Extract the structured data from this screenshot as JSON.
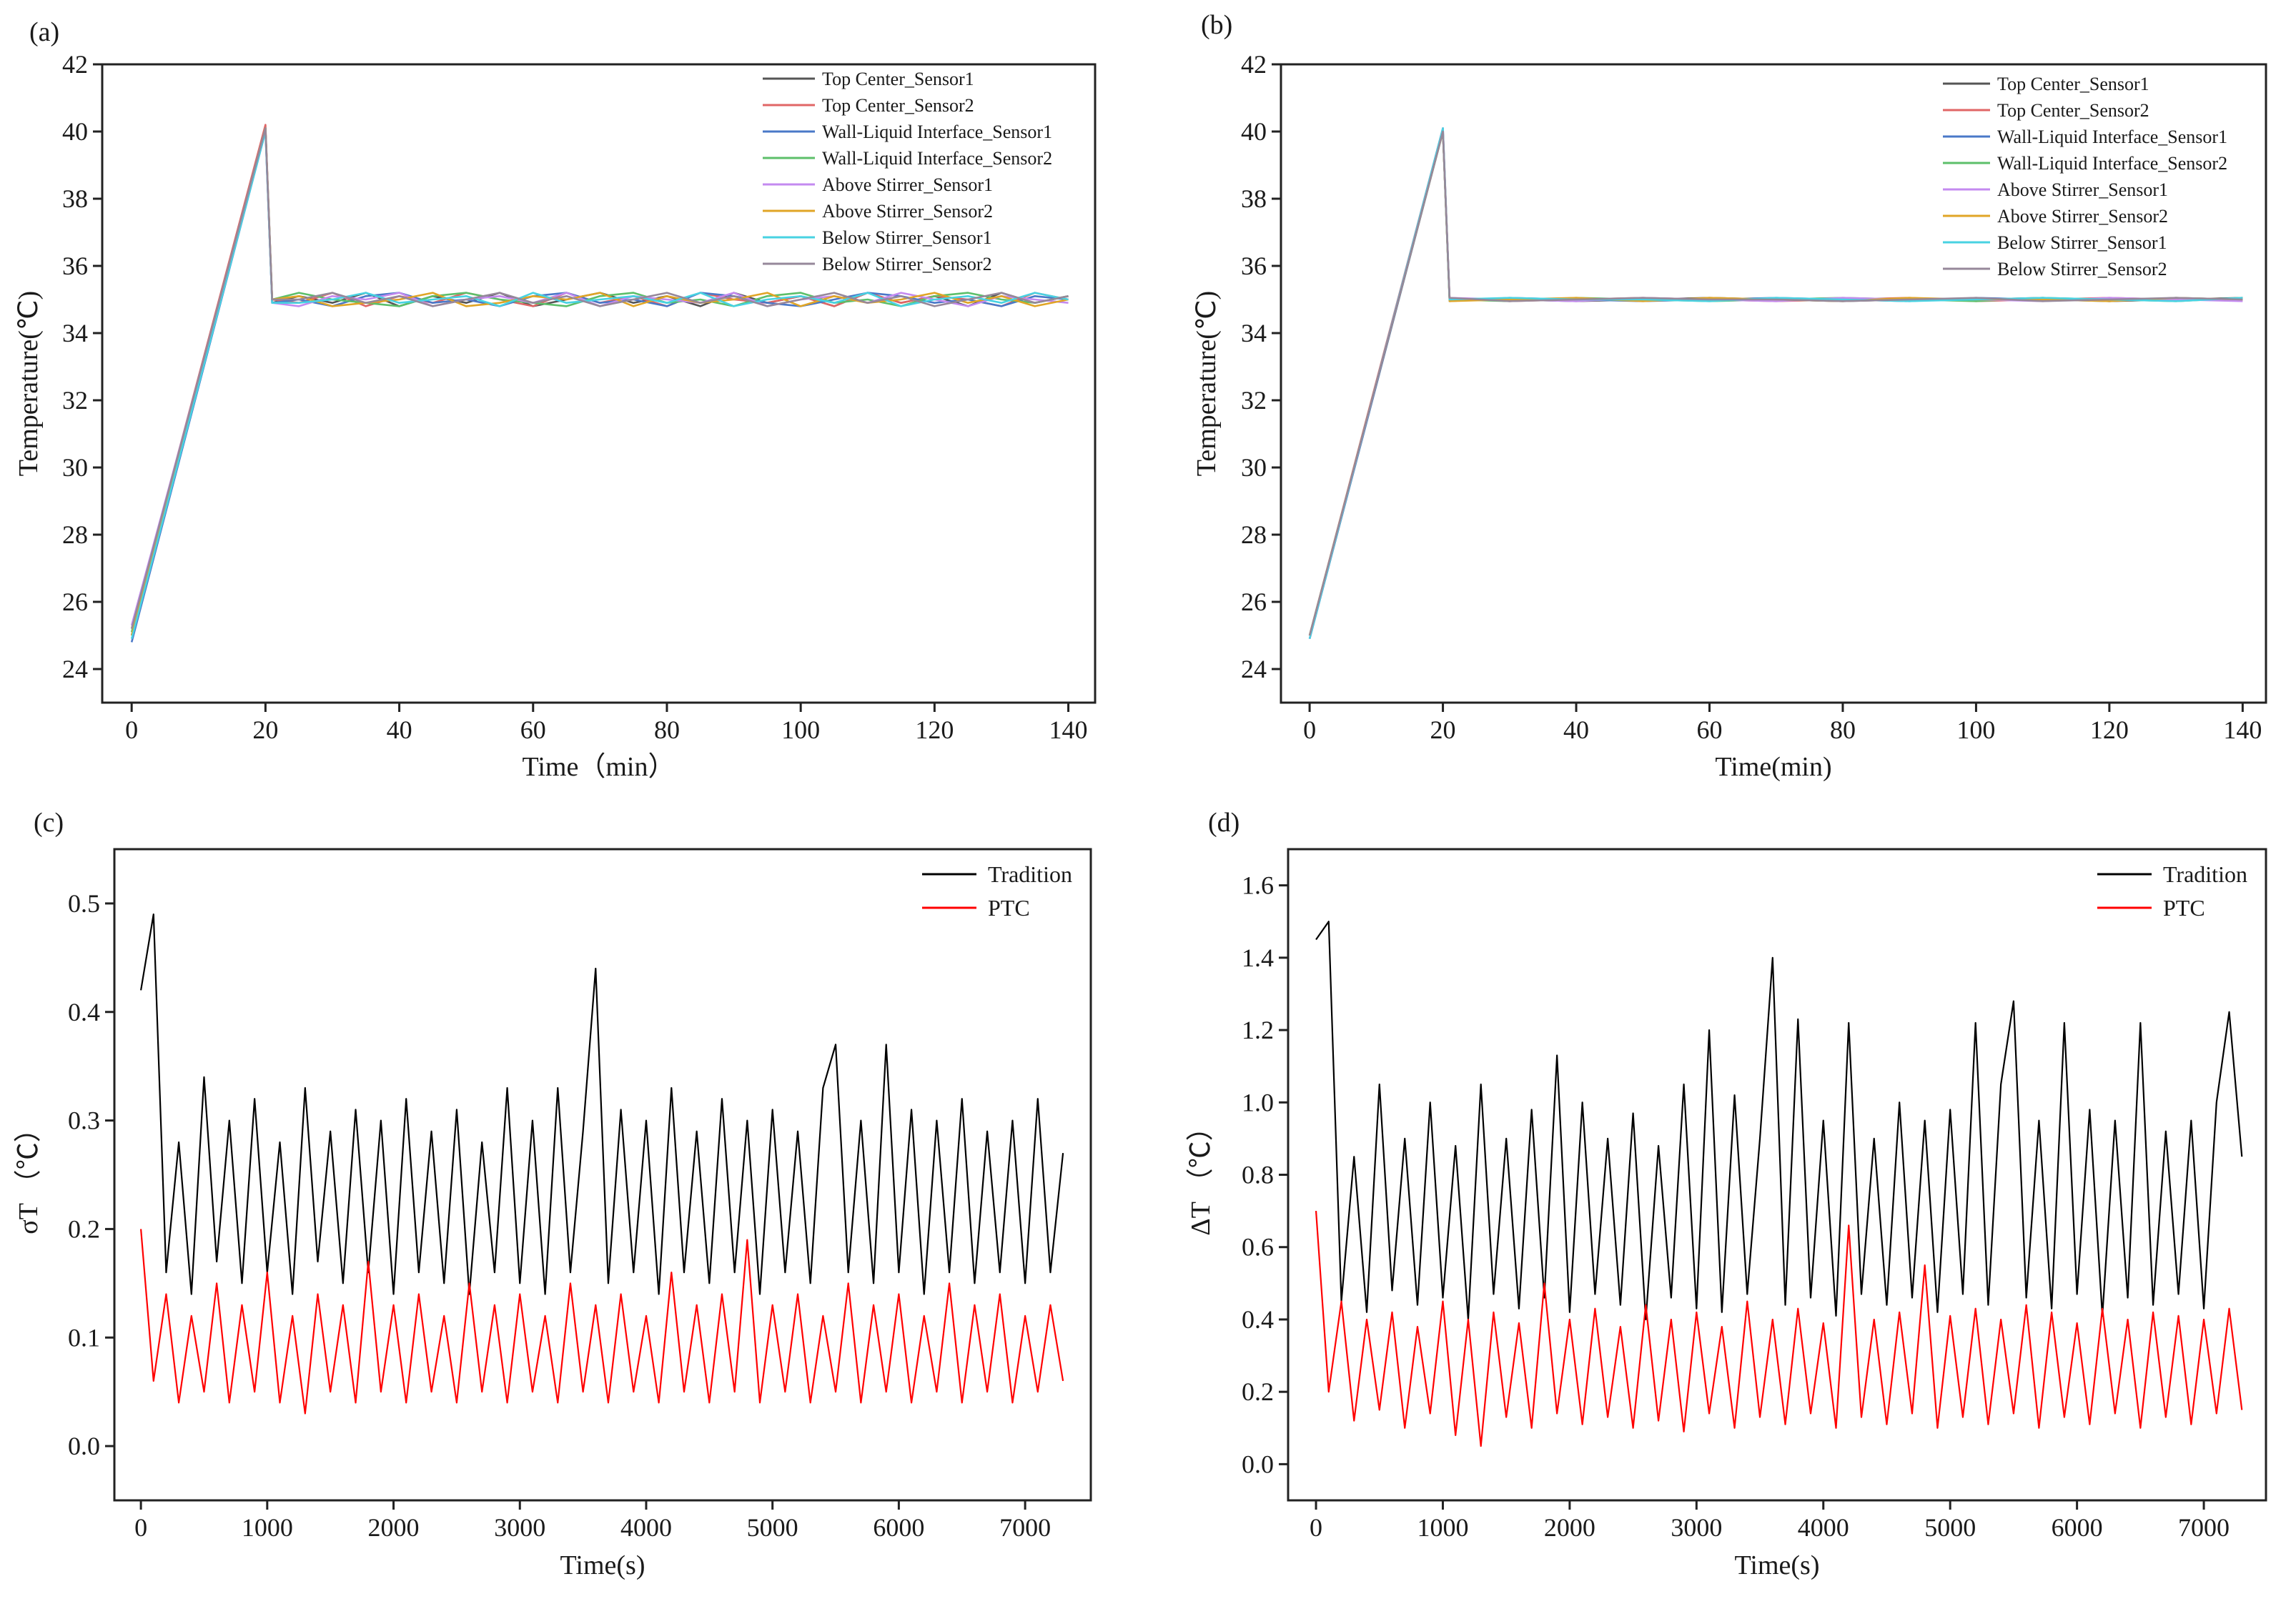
{
  "chart_data": [
    {
      "type": "line",
      "panel_label": "(a)",
      "xlabel": "Time（min）",
      "ylabel": "Temperature(℃)",
      "legend": "upper right",
      "xlim": [
        -4.4,
        144
      ],
      "ylim": [
        23,
        42
      ],
      "xticks": [
        0,
        20,
        40,
        60,
        80,
        100,
        120,
        140
      ],
      "yticks": [
        24,
        26,
        28,
        30,
        32,
        34,
        36,
        38,
        40,
        42
      ],
      "x": [
        0,
        20,
        21,
        25,
        30,
        35,
        40,
        45,
        50,
        55,
        60,
        65,
        70,
        75,
        80,
        85,
        90,
        95,
        100,
        105,
        110,
        115,
        120,
        125,
        130,
        135,
        140
      ],
      "series": [
        {
          "name": "Top Center_Sensor1",
          "color": "#555555",
          "values": [
            25.0,
            40.1,
            34.9,
            35.1,
            34.9,
            35.2,
            34.8,
            35.1,
            34.9,
            35.2,
            34.8,
            35.0,
            35.2,
            34.9,
            35.1,
            34.8,
            35.2,
            34.9,
            35.1,
            34.8,
            35.2,
            34.9,
            35.1,
            34.8,
            35.2,
            34.9,
            35.1
          ]
        },
        {
          "name": "Top Center_Sensor2",
          "color": "#e06666",
          "values": [
            25.2,
            40.2,
            35.0,
            34.9,
            35.2,
            34.8,
            35.1,
            34.9,
            35.2,
            35.0,
            34.8,
            35.2,
            34.9,
            35.1,
            34.8,
            35.2,
            35.0,
            34.9,
            35.1,
            34.8,
            35.2,
            34.9,
            35.1,
            35.0,
            34.8,
            35.2,
            35.0
          ]
        },
        {
          "name": "Wall-Liquid Interface_Sensor1",
          "color": "#4a78c8",
          "values": [
            24.8,
            40.0,
            34.9,
            35.0,
            34.8,
            35.1,
            35.2,
            34.9,
            35.0,
            34.8,
            35.1,
            35.2,
            34.9,
            35.0,
            34.8,
            35.2,
            35.1,
            34.9,
            34.8,
            35.0,
            35.2,
            35.1,
            34.9,
            35.0,
            34.8,
            35.1,
            35.0
          ]
        },
        {
          "name": "Wall-Liquid Interface_Sensor2",
          "color": "#5cbf6a",
          "values": [
            25.1,
            40.1,
            35.0,
            35.2,
            35.0,
            34.9,
            34.8,
            35.1,
            35.2,
            35.0,
            34.9,
            34.8,
            35.1,
            35.2,
            34.9,
            35.0,
            34.8,
            35.1,
            35.2,
            34.9,
            35.0,
            34.8,
            35.1,
            35.2,
            35.0,
            34.9,
            35.1
          ]
        },
        {
          "name": "Above Stirrer_Sensor1",
          "color": "#c48af0",
          "values": [
            25.3,
            40.0,
            34.9,
            34.8,
            35.1,
            35.0,
            35.2,
            34.8,
            35.0,
            35.1,
            34.9,
            35.2,
            34.8,
            35.1,
            35.0,
            34.9,
            35.2,
            34.8,
            35.0,
            35.1,
            34.9,
            35.2,
            35.0,
            34.8,
            35.1,
            35.0,
            34.9
          ]
        },
        {
          "name": "Above Stirrer_Sensor2",
          "color": "#e0a526",
          "values": [
            25.0,
            40.1,
            35.0,
            35.1,
            34.8,
            34.9,
            35.0,
            35.2,
            34.8,
            34.9,
            35.1,
            35.0,
            35.2,
            34.8,
            35.1,
            34.9,
            35.0,
            35.2,
            34.8,
            35.1,
            34.9,
            35.0,
            35.2,
            34.9,
            35.1,
            34.8,
            35.0
          ]
        },
        {
          "name": "Below Stirrer_Sensor1",
          "color": "#48d2e2",
          "values": [
            24.9,
            40.0,
            34.9,
            34.9,
            35.0,
            35.2,
            34.9,
            35.0,
            35.1,
            34.8,
            35.2,
            34.9,
            35.0,
            35.1,
            34.9,
            35.2,
            34.8,
            35.0,
            35.1,
            34.9,
            35.2,
            34.8,
            35.0,
            35.1,
            34.9,
            35.2,
            35.0
          ]
        },
        {
          "name": "Below Stirrer_Sensor2",
          "color": "#96889a",
          "values": [
            25.2,
            40.1,
            35.0,
            35.0,
            35.2,
            34.9,
            35.1,
            34.8,
            35.0,
            35.2,
            34.9,
            35.1,
            34.8,
            35.0,
            35.2,
            34.9,
            35.1,
            34.8,
            35.0,
            35.2,
            34.9,
            35.1,
            34.8,
            35.0,
            35.2,
            34.9,
            35.1
          ]
        }
      ]
    },
    {
      "type": "line",
      "panel_label": "(b)",
      "xlabel": "Time(min)",
      "ylabel": "Temperature(℃)",
      "legend": "upper right",
      "xlim": [
        -4.3,
        143.5
      ],
      "ylim": [
        23,
        42
      ],
      "xticks": [
        0,
        20,
        40,
        60,
        80,
        100,
        120,
        140
      ],
      "yticks": [
        24,
        26,
        28,
        30,
        32,
        34,
        36,
        38,
        40,
        42
      ],
      "x": [
        0,
        20,
        21,
        30,
        40,
        50,
        60,
        70,
        80,
        90,
        100,
        110,
        120,
        130,
        140
      ],
      "series": [
        {
          "name": "Top Center_Sensor1",
          "color": "#555555",
          "values": [
            24.9,
            40.0,
            35.0,
            35.0,
            34.95,
            35.0,
            35.05,
            35.0,
            34.95,
            35.0,
            35.0,
            35.05,
            34.95,
            35.0,
            35.05
          ]
        },
        {
          "name": "Top Center_Sensor2",
          "color": "#e06666",
          "values": [
            25.0,
            40.1,
            35.05,
            34.95,
            35.0,
            35.05,
            35.0,
            34.95,
            35.0,
            35.05,
            34.95,
            35.0,
            35.05,
            35.0,
            35.0
          ]
        },
        {
          "name": "Wall-Liquid Interface_Sensor1",
          "color": "#4a78c8",
          "values": [
            24.9,
            40.0,
            34.95,
            35.05,
            35.0,
            34.95,
            35.0,
            35.05,
            35.0,
            34.95,
            35.05,
            35.0,
            34.95,
            35.05,
            35.0
          ]
        },
        {
          "name": "Wall-Liquid Interface_Sensor2",
          "color": "#5cbf6a",
          "values": [
            25.0,
            40.0,
            35.0,
            34.95,
            35.05,
            35.0,
            34.95,
            35.0,
            35.05,
            35.0,
            34.95,
            35.05,
            35.0,
            34.95,
            35.05
          ]
        },
        {
          "name": "Above Stirrer_Sensor1",
          "color": "#c48af0",
          "values": [
            24.9,
            40.1,
            35.05,
            35.0,
            34.95,
            35.05,
            35.0,
            34.95,
            35.05,
            35.0,
            35.0,
            34.95,
            35.05,
            35.0,
            34.95
          ]
        },
        {
          "name": "Above Stirrer_Sensor2",
          "color": "#e0a526",
          "values": [
            25.0,
            40.0,
            34.95,
            35.0,
            35.05,
            34.95,
            35.05,
            35.0,
            34.95,
            35.05,
            35.0,
            35.0,
            34.95,
            35.05,
            35.0
          ]
        },
        {
          "name": "Below Stirrer_Sensor1",
          "color": "#48d2e2",
          "values": [
            24.9,
            40.1,
            35.0,
            35.05,
            35.0,
            35.0,
            34.95,
            35.05,
            35.0,
            34.95,
            35.0,
            35.05,
            35.0,
            34.95,
            35.05
          ]
        },
        {
          "name": "Below Stirrer_Sensor2",
          "color": "#96889a",
          "values": [
            25.0,
            40.0,
            35.05,
            34.95,
            35.0,
            35.05,
            35.0,
            35.0,
            34.95,
            35.0,
            35.05,
            34.95,
            35.0,
            35.05,
            35.0
          ]
        }
      ]
    },
    {
      "type": "line",
      "panel_label": "(c)",
      "xlabel": "Time(s)",
      "ylabel": "σT （℃）",
      "legend": "upper right",
      "xlim": [
        -210,
        7520
      ],
      "ylim": [
        -0.05,
        0.55
      ],
      "xticks": [
        0,
        1000,
        2000,
        3000,
        4000,
        5000,
        6000,
        7000
      ],
      "yticks": [
        {
          "value": 0,
          "label": "0.0"
        },
        0.1,
        0.2,
        0.3,
        0.4,
        0.5
      ],
      "x": [
        0,
        100,
        200,
        300,
        400,
        500,
        600,
        700,
        800,
        900,
        1000,
        1100,
        1200,
        1300,
        1400,
        1500,
        1600,
        1700,
        1800,
        1900,
        2000,
        2100,
        2200,
        2300,
        2400,
        2500,
        2600,
        2700,
        2800,
        2900,
        3000,
        3100,
        3200,
        3300,
        3400,
        3500,
        3600,
        3700,
        3800,
        3900,
        4000,
        4100,
        4200,
        4300,
        4400,
        4500,
        4600,
        4700,
        4800,
        4900,
        5000,
        5100,
        5200,
        5300,
        5400,
        5500,
        5600,
        5700,
        5800,
        5900,
        6000,
        6100,
        6200,
        6300,
        6400,
        6500,
        6600,
        6700,
        6800,
        6900,
        7000,
        7100,
        7200,
        7300
      ],
      "series": [
        {
          "name": "Tradition",
          "color": "#000000",
          "values": [
            0.42,
            0.49,
            0.16,
            0.28,
            0.14,
            0.34,
            0.17,
            0.3,
            0.15,
            0.32,
            0.16,
            0.28,
            0.14,
            0.33,
            0.17,
            0.29,
            0.15,
            0.31,
            0.16,
            0.3,
            0.14,
            0.32,
            0.16,
            0.29,
            0.15,
            0.31,
            0.14,
            0.28,
            0.16,
            0.33,
            0.15,
            0.3,
            0.14,
            0.33,
            0.16,
            0.29,
            0.44,
            0.15,
            0.31,
            0.16,
            0.3,
            0.14,
            0.33,
            0.16,
            0.29,
            0.15,
            0.32,
            0.16,
            0.3,
            0.14,
            0.31,
            0.16,
            0.29,
            0.15,
            0.33,
            0.37,
            0.16,
            0.3,
            0.15,
            0.37,
            0.16,
            0.31,
            0.14,
            0.3,
            0.16,
            0.32,
            0.15,
            0.29,
            0.16,
            0.3,
            0.15,
            0.32,
            0.16,
            0.27
          ]
        },
        {
          "name": "PTC",
          "color": "#ff0000",
          "values": [
            0.2,
            0.06,
            0.14,
            0.04,
            0.12,
            0.05,
            0.15,
            0.04,
            0.13,
            0.05,
            0.16,
            0.04,
            0.12,
            0.03,
            0.14,
            0.05,
            0.13,
            0.04,
            0.17,
            0.05,
            0.13,
            0.04,
            0.14,
            0.05,
            0.12,
            0.04,
            0.15,
            0.05,
            0.13,
            0.04,
            0.14,
            0.05,
            0.12,
            0.04,
            0.15,
            0.05,
            0.13,
            0.04,
            0.14,
            0.05,
            0.12,
            0.04,
            0.16,
            0.05,
            0.13,
            0.04,
            0.14,
            0.05,
            0.19,
            0.04,
            0.13,
            0.05,
            0.14,
            0.04,
            0.12,
            0.05,
            0.15,
            0.04,
            0.13,
            0.05,
            0.14,
            0.04,
            0.12,
            0.05,
            0.15,
            0.04,
            0.13,
            0.05,
            0.14,
            0.04,
            0.12,
            0.05,
            0.13,
            0.06
          ]
        }
      ]
    },
    {
      "type": "line",
      "panel_label": "(d)",
      "xlabel": "Time(s)",
      "ylabel": "ΔT （℃）",
      "legend": "upper right",
      "xlim": [
        -220,
        7490
      ],
      "ylim": [
        -0.1,
        1.7
      ],
      "xticks": [
        0,
        1000,
        2000,
        3000,
        4000,
        5000,
        6000,
        7000
      ],
      "yticks": [
        {
          "value": 0,
          "label": "0.0"
        },
        0.2,
        0.4,
        0.6,
        0.8,
        {
          "value": 1,
          "label": "1.0"
        },
        1.2,
        1.4,
        1.6
      ],
      "x": [
        0,
        100,
        200,
        300,
        400,
        500,
        600,
        700,
        800,
        900,
        1000,
        1100,
        1200,
        1300,
        1400,
        1500,
        1600,
        1700,
        1800,
        1900,
        2000,
        2100,
        2200,
        2300,
        2400,
        2500,
        2600,
        2700,
        2800,
        2900,
        3000,
        3100,
        3200,
        3300,
        3400,
        3500,
        3600,
        3700,
        3800,
        3900,
        4000,
        4100,
        4200,
        4300,
        4400,
        4500,
        4600,
        4700,
        4800,
        4900,
        5000,
        5100,
        5200,
        5300,
        5400,
        5500,
        5600,
        5700,
        5800,
        5900,
        6000,
        6100,
        6200,
        6300,
        6400,
        6500,
        6600,
        6700,
        6800,
        6900,
        7000,
        7100,
        7200,
        7300
      ],
      "series": [
        {
          "name": "Tradition",
          "color": "#000000",
          "values": [
            1.45,
            1.5,
            0.45,
            0.85,
            0.42,
            1.05,
            0.48,
            0.9,
            0.44,
            1.0,
            0.46,
            0.88,
            0.4,
            1.05,
            0.47,
            0.9,
            0.43,
            0.98,
            0.46,
            1.13,
            0.42,
            1.0,
            0.47,
            0.9,
            0.44,
            0.97,
            0.4,
            0.88,
            0.46,
            1.05,
            0.43,
            1.2,
            0.42,
            1.02,
            0.47,
            0.9,
            1.4,
            0.44,
            1.23,
            0.46,
            0.95,
            0.41,
            1.22,
            0.47,
            0.9,
            0.44,
            1.0,
            0.46,
            0.95,
            0.42,
            0.98,
            0.47,
            1.22,
            0.44,
            1.05,
            1.28,
            0.46,
            0.95,
            0.43,
            1.22,
            0.47,
            0.98,
            0.41,
            0.95,
            0.46,
            1.22,
            0.44,
            0.92,
            0.47,
            0.95,
            0.43,
            1.0,
            1.25,
            0.85
          ]
        },
        {
          "name": "PTC",
          "color": "#ff0000",
          "values": [
            0.7,
            0.2,
            0.45,
            0.12,
            0.4,
            0.15,
            0.42,
            0.1,
            0.38,
            0.14,
            0.45,
            0.08,
            0.4,
            0.05,
            0.42,
            0.13,
            0.39,
            0.1,
            0.5,
            0.14,
            0.4,
            0.11,
            0.43,
            0.13,
            0.38,
            0.1,
            0.44,
            0.12,
            0.4,
            0.09,
            0.42,
            0.14,
            0.38,
            0.1,
            0.45,
            0.13,
            0.4,
            0.11,
            0.43,
            0.14,
            0.39,
            0.1,
            0.66,
            0.13,
            0.4,
            0.11,
            0.42,
            0.14,
            0.55,
            0.1,
            0.41,
            0.13,
            0.43,
            0.11,
            0.4,
            0.14,
            0.44,
            0.1,
            0.42,
            0.13,
            0.39,
            0.11,
            0.43,
            0.14,
            0.4,
            0.1,
            0.42,
            0.13,
            0.41,
            0.11,
            0.4,
            0.14,
            0.43,
            0.15
          ]
        }
      ]
    }
  ]
}
